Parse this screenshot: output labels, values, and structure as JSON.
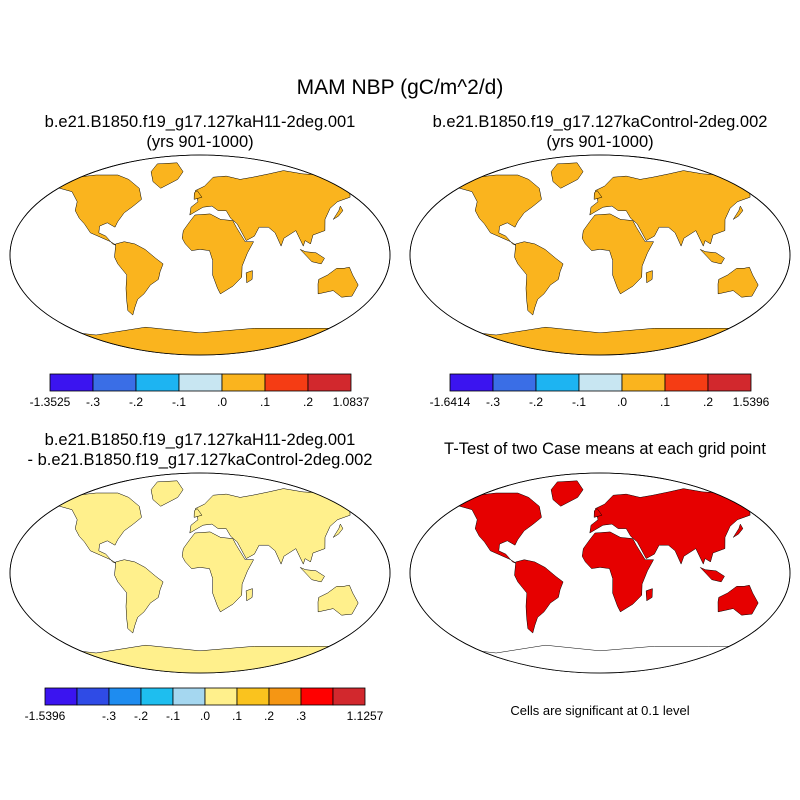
{
  "title": "MAM NBP (gC/m^2/d)",
  "panels": [
    {
      "id": "case1",
      "title_line1": "b.e21.B1850.f19_g17.127kaH11-2deg.001",
      "title_line2": "(yrs 901-1000)"
    },
    {
      "id": "case2",
      "title_line1": "b.e21.B1850.f19_g17.127kaControl-2deg.002",
      "title_line2": "(yrs 901-1000)"
    },
    {
      "id": "diff",
      "title_line1": "b.e21.B1850.f19_g17.127kaH11-2deg.001",
      "title_line2": "- b.e21.B1850.f19_g17.127kaControl-2deg.002"
    },
    {
      "id": "ttest",
      "title_line1": "T-Test of two Case means at each grid point"
    }
  ],
  "note": "Cells are significant at 0.1 level",
  "colorbars": [
    {
      "id": "case1",
      "labels": [
        "-1.3525",
        "-.3",
        "-.2",
        "-.1",
        ".0",
        ".1",
        ".2",
        "1.0837"
      ],
      "colors": [
        "#3b14f0",
        "#3a6ee6",
        "#1db4f2",
        "#c8e6f2",
        "#fab41e",
        "#f53c14",
        "#d2282d"
      ]
    },
    {
      "id": "case2",
      "labels": [
        "-1.6414",
        "-.3",
        "-.2",
        "-.1",
        ".0",
        ".1",
        ".2",
        "1.5396"
      ],
      "colors": [
        "#3b14f0",
        "#3a6ee6",
        "#1db4f2",
        "#c8e6f2",
        "#fab41e",
        "#f53c14",
        "#d2282d"
      ]
    },
    {
      "id": "diff",
      "labels": [
        "-1.5396",
        "",
        "-.3",
        "-.2",
        "-.1",
        ".0",
        ".1",
        ".2",
        ".3",
        "",
        "1.1257"
      ],
      "colors": [
        "#3b14f0",
        "#2f4be6",
        "#1e8cf0",
        "#1ebeef",
        "#a5d7f0",
        "#fff08c",
        "#fac31e",
        "#f59614",
        "#ff0000",
        "#d2282d"
      ]
    }
  ],
  "map_colors": {
    "case1_fill": "#fab41e",
    "case2_fill": "#fab41e",
    "diff_fill": "#fff08c",
    "ttest_fill": "#e60000",
    "antarctica_case": "#fab41e",
    "antarctica_diff": "#fff08c"
  }
}
